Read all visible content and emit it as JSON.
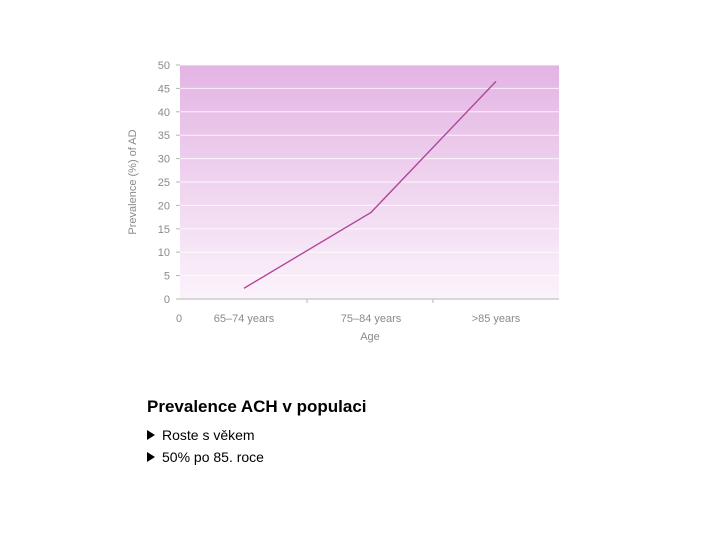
{
  "chart_data": {
    "type": "line",
    "title": "",
    "xlabel": "Age",
    "ylabel": "Prevalence (%) of AD",
    "x_origin_label": "0",
    "categories": [
      "65–74 years",
      "75–84 years",
      ">85 years"
    ],
    "series": [
      {
        "values": [
          2.3,
          18.5,
          46.5
        ]
      }
    ],
    "ylim": [
      0,
      50
    ],
    "yticks": [
      0,
      5,
      10,
      15,
      20,
      25,
      30,
      35,
      40,
      45,
      50
    ],
    "grid": true,
    "colors": {
      "line": "#b0489a",
      "band_top": "#e3b4e3",
      "band_bottom": "#fbf3fb"
    }
  },
  "caption": {
    "title": "Prevalence ACH v populaci",
    "bullets": [
      {
        "icon": "arrow-bullet-icon",
        "text": "Roste s věkem"
      },
      {
        "icon": "arrow-bullet-icon",
        "text": "50% po 85. roce"
      }
    ]
  }
}
